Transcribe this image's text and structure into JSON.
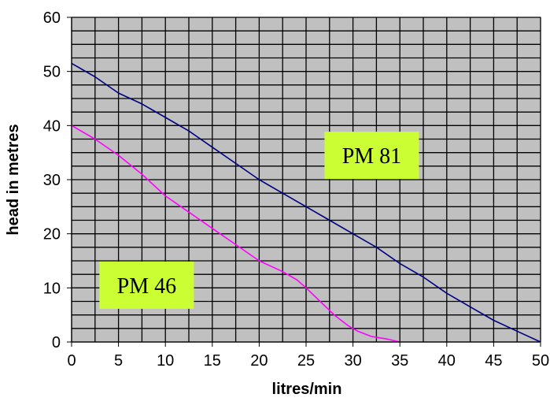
{
  "chart_data": {
    "type": "line",
    "xlabel": "litres/min",
    "ylabel": "head in metres",
    "xlim": [
      0,
      50
    ],
    "ylim": [
      0,
      60
    ],
    "x_ticks": [
      0,
      5,
      10,
      15,
      20,
      25,
      30,
      35,
      40,
      45,
      50
    ],
    "y_ticks": [
      0,
      10,
      20,
      30,
      40,
      50,
      60
    ],
    "grid": true,
    "plot_background": "#c0c0c0",
    "label_background": "#ccff33",
    "series": [
      {
        "name": "PM 81",
        "color": "#000080",
        "x": [
          0,
          2.5,
          5,
          7.5,
          10,
          12.5,
          15,
          17.5,
          20,
          22.5,
          25,
          27.5,
          30,
          32.5,
          35,
          37.5,
          40,
          42.5,
          45,
          47.5,
          50
        ],
        "y": [
          51.5,
          49,
          46,
          44,
          41.5,
          39,
          36,
          33,
          30,
          27.5,
          25,
          22.5,
          20,
          17.5,
          14.5,
          12,
          9,
          6.5,
          4,
          2,
          0
        ]
      },
      {
        "name": "PM 46",
        "color": "#ff00ff",
        "x": [
          0,
          2.5,
          5,
          7.5,
          10,
          12.5,
          15,
          17.5,
          20,
          22.5,
          24,
          25,
          26.5,
          28,
          29.5,
          30.5,
          32,
          33.5,
          35
        ],
        "y": [
          40,
          37.5,
          34.5,
          31,
          27,
          24,
          21,
          18,
          15,
          13,
          11.5,
          10,
          7.5,
          5,
          3,
          2,
          1,
          0.6,
          0
        ]
      }
    ],
    "annotations": [
      {
        "series": "PM 81",
        "text": "PM 81",
        "x": 32,
        "y": 34.5
      },
      {
        "series": "PM 46",
        "text": "PM 46",
        "x": 8,
        "y": 10.5
      }
    ]
  }
}
